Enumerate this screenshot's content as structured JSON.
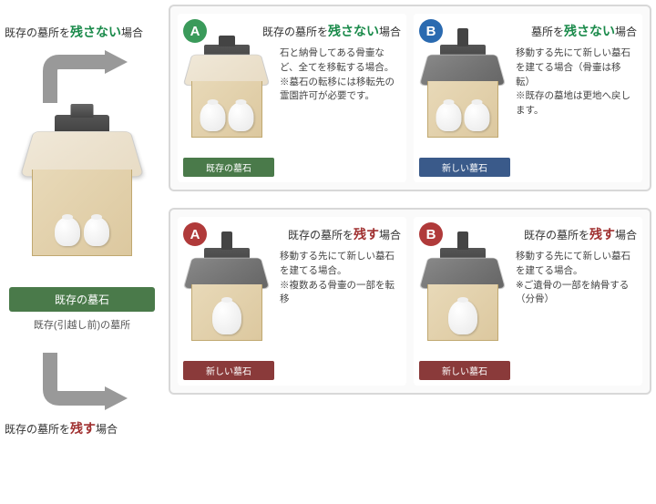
{
  "left": {
    "top_label_pre": "既存の墓所を",
    "top_label_em": "残さない",
    "top_label_post": "場合",
    "origin_badge": "既存の墓石",
    "origin_caption": "既存(引越し前)の墓所",
    "bot_label_pre": "既存の墓所を",
    "bot_label_em": "残す",
    "bot_label_post": "場合"
  },
  "panel1": {
    "A": {
      "letter": "A",
      "title_pre": "既存の墓所を",
      "title_em": "残さない",
      "title_post": "場合",
      "desc": "石と納骨してある骨壷など、全てを移転する場合。\n※墓石の転移には移転先の霊園許可が必要です。",
      "badge": "既存の墓石",
      "urn_count": 2
    },
    "B": {
      "letter": "B",
      "title_pre": "墓所を",
      "title_em": "残さない",
      "title_post": "場合",
      "desc": "移動する先にて新しい墓石を建てる場合（骨壷は移転）\n※既存の墓地は更地へ戻します。",
      "badge": "新しい墓石",
      "urn_count": 2
    }
  },
  "panel2": {
    "A": {
      "letter": "A",
      "title_pre": "既存の墓所を",
      "title_em": "残す",
      "title_post": "場合",
      "desc": "移動する先にて新しい墓石を建てる場合。\n※複数ある骨壷の一部を転移",
      "badge": "新しい墓石",
      "urn_count": 1
    },
    "B": {
      "letter": "B",
      "title_pre": "既存の墓所を",
      "title_em": "残す",
      "title_post": "場合",
      "desc": "移動する先にて新しい墓石を建てる場合。\n※ご遺骨の一部を納骨する（分骨）",
      "badge": "新しい墓石",
      "urn_count": 1
    }
  },
  "colors": {
    "green": "#3a9a5a",
    "blue": "#2a6ab0",
    "red": "#b03a3a",
    "arrow": "#999999"
  }
}
